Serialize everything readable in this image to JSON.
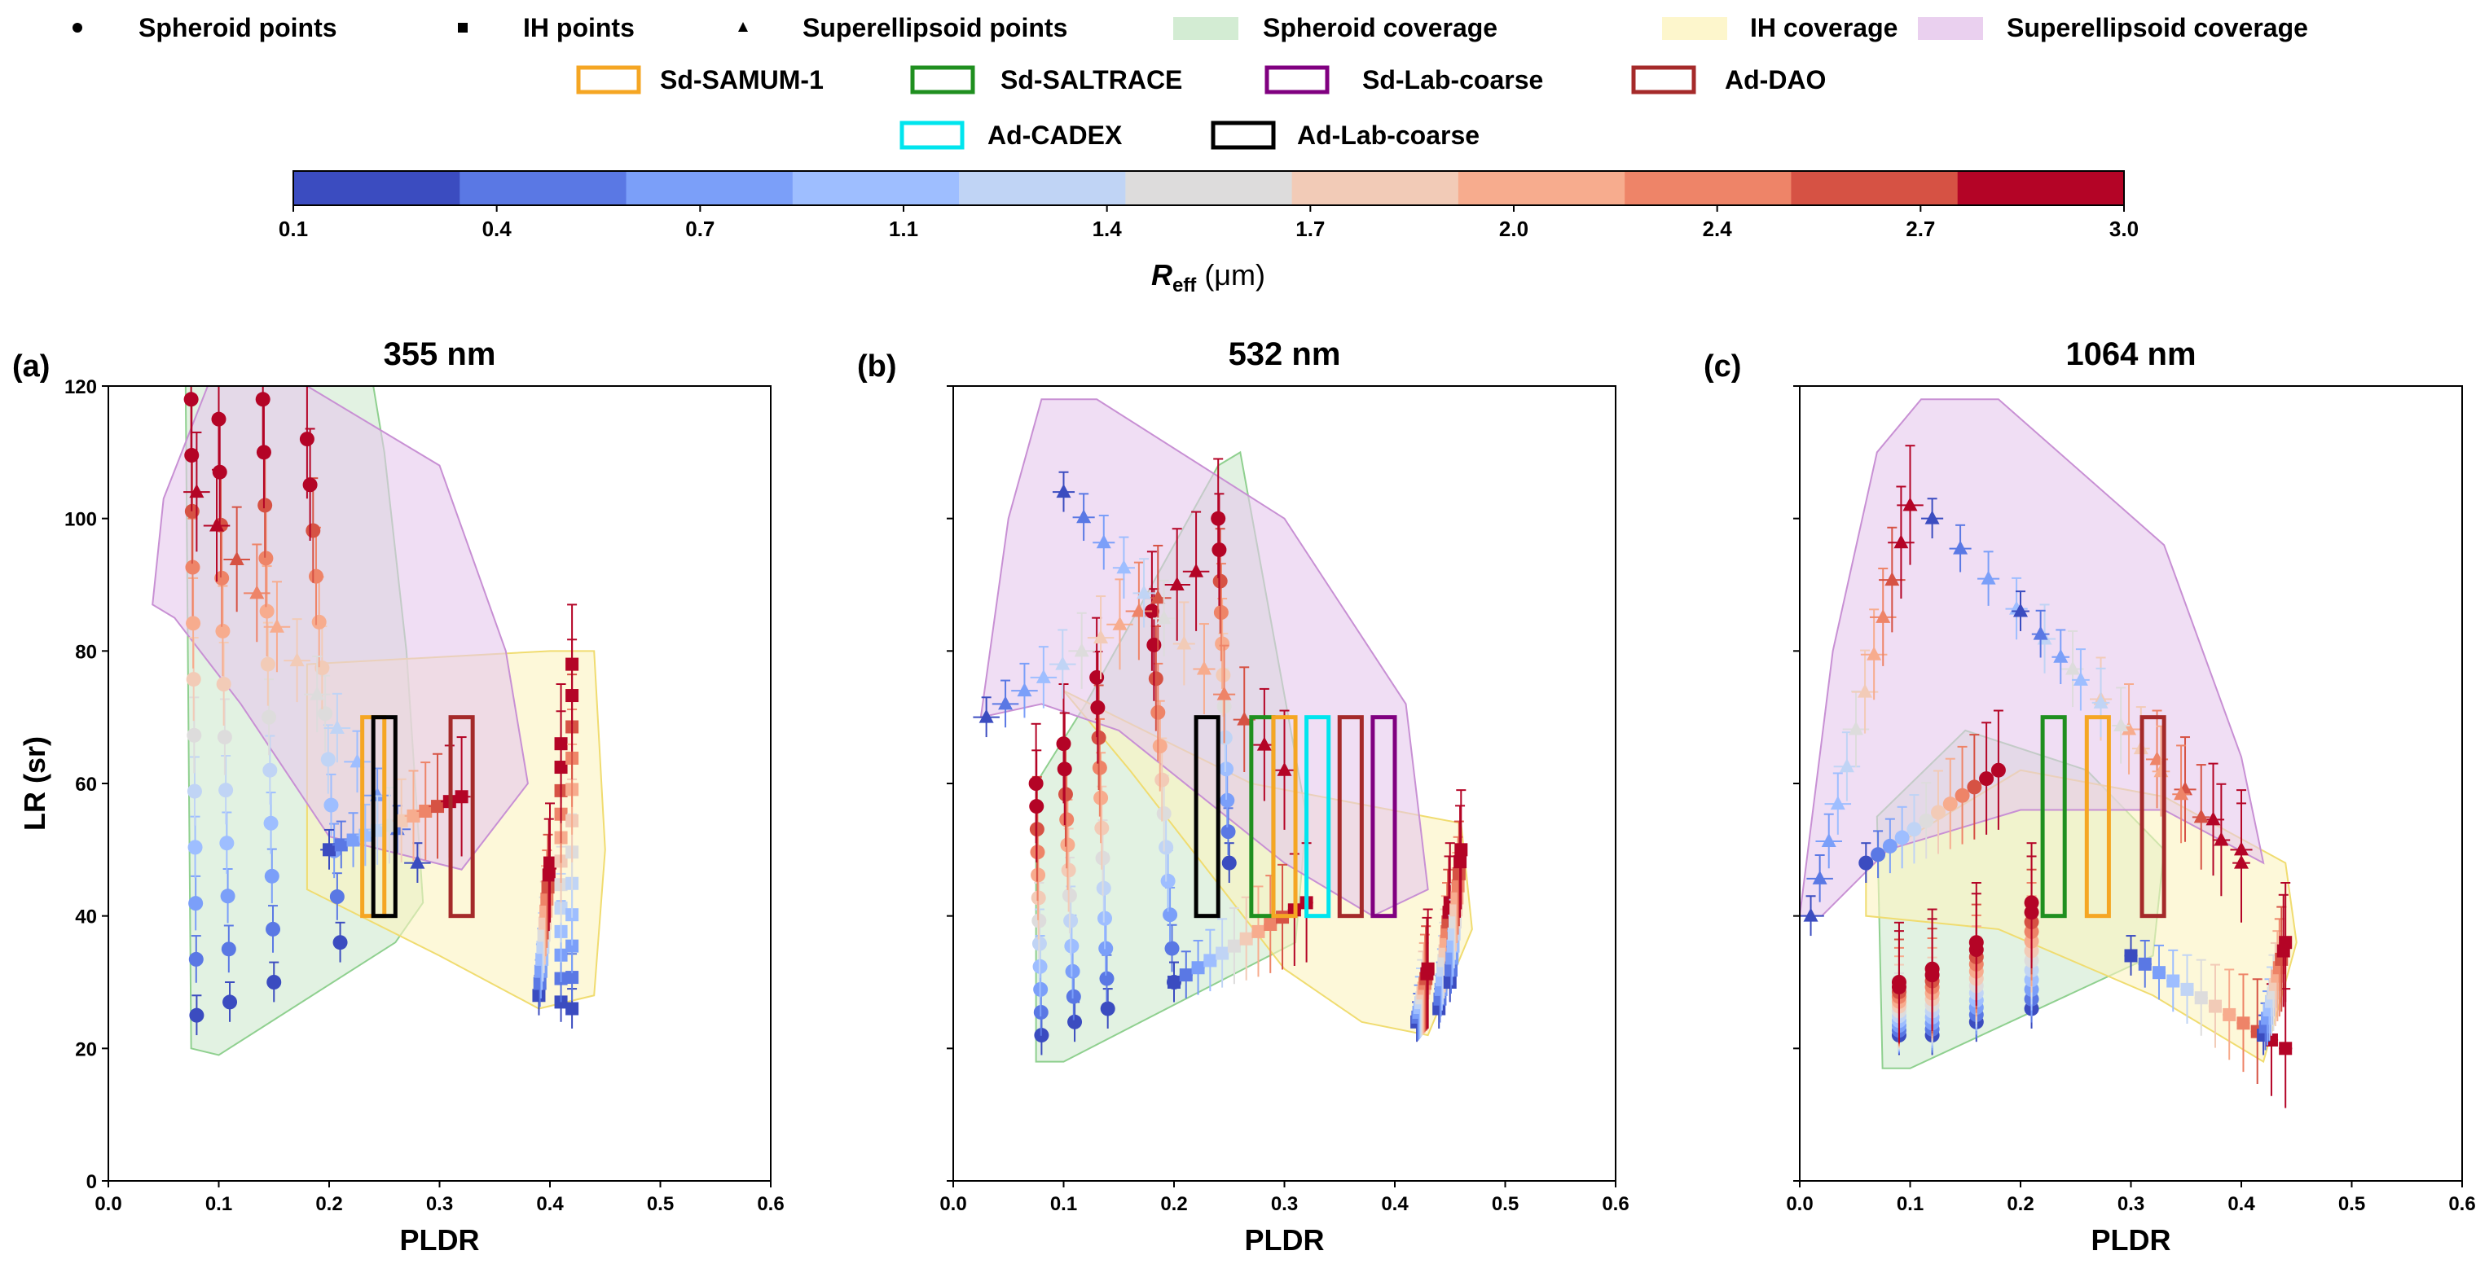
{
  "legend": {
    "markers": [
      {
        "label": "Spheroid points",
        "shape": "circle"
      },
      {
        "label": "IH points",
        "shape": "square"
      },
      {
        "label": "Superellipsoid points",
        "shape": "triangle"
      }
    ],
    "coverage": [
      {
        "label": "Spheroid coverage",
        "color": "#d3ecd3"
      },
      {
        "label": "IH coverage",
        "color": "#fdf6cc"
      },
      {
        "label": "Superellipsoid coverage",
        "color": "#ead0ef"
      }
    ],
    "boxes": [
      {
        "label": "Sd-SAMUM-1",
        "color": "#f5a623"
      },
      {
        "label": "Sd-SALTRACE",
        "color": "#1f8f1f"
      },
      {
        "label": "Sd-Lab-coarse",
        "color": "#800080"
      },
      {
        "label": "Ad-DAO",
        "color": "#a52a2a"
      },
      {
        "label": "Ad-CADEX",
        "color": "#00e5ee"
      },
      {
        "label": "Ad-Lab-coarse",
        "color": "#000000"
      }
    ]
  },
  "colorbar": {
    "label_main": "R",
    "label_sub": "eff",
    "label_unit": " (μm)",
    "ticks": [
      "0.1",
      "0.4",
      "0.7",
      "1.1",
      "1.4",
      "1.7",
      "2.0",
      "2.4",
      "2.7",
      "3.0"
    ],
    "colors": [
      "#3b4cc0",
      "#5a78e4",
      "#7b9ff9",
      "#9ebeff",
      "#c0d4f5",
      "#dddcdc",
      "#f2cbb7",
      "#f7ac8e",
      "#ee8468",
      "#d65244",
      "#b40426"
    ]
  },
  "chart_data": [
    {
      "type": "scatter",
      "panel": "(a)",
      "title": "355 nm",
      "xlabel": "PLDR",
      "ylabel": "LR (sr)",
      "xlim": [
        0.0,
        0.6
      ],
      "ylim": [
        0,
        120
      ],
      "xticks": [
        "0.0",
        "0.1",
        "0.2",
        "0.3",
        "0.4",
        "0.5",
        "0.6"
      ],
      "yticks": [
        "0",
        "20",
        "40",
        "60",
        "80",
        "100",
        "120"
      ],
      "coverage": {
        "spheroid": [
          [
            0.075,
            20
          ],
          [
            0.1,
            19
          ],
          [
            0.26,
            36
          ],
          [
            0.285,
            42
          ],
          [
            0.27,
            80
          ],
          [
            0.25,
            110
          ],
          [
            0.24,
            120
          ],
          [
            0.07,
            120
          ]
        ],
        "ih": [
          [
            0.18,
            78
          ],
          [
            0.4,
            80
          ],
          [
            0.44,
            80
          ],
          [
            0.45,
            50
          ],
          [
            0.44,
            28
          ],
          [
            0.39,
            26
          ],
          [
            0.3,
            34
          ],
          [
            0.18,
            44
          ]
        ],
        "superellipsoid": [
          [
            0.04,
            87
          ],
          [
            0.05,
            103
          ],
          [
            0.09,
            120
          ],
          [
            0.18,
            120
          ],
          [
            0.3,
            108
          ],
          [
            0.36,
            80
          ],
          [
            0.38,
            60
          ],
          [
            0.32,
            47
          ],
          [
            0.2,
            52
          ],
          [
            0.12,
            72
          ],
          [
            0.06,
            85
          ]
        ]
      },
      "boxes": [
        {
          "name": "Sd-SAMUM-1",
          "x": [
            0.23,
            0.25
          ],
          "y": [
            40,
            70
          ]
        },
        {
          "name": "Ad-Lab-coarse",
          "x": [
            0.24,
            0.26
          ],
          "y": [
            40,
            70
          ]
        },
        {
          "name": "Ad-DAO",
          "x": [
            0.31,
            0.33
          ],
          "y": [
            40,
            70
          ]
        }
      ],
      "point_series": [
        {
          "shape": "circle",
          "spread": 0.006,
          "p0": [
            0.08,
            25
          ],
          "p1": [
            0.075,
            118
          ]
        },
        {
          "shape": "circle",
          "spread": 0.006,
          "p0": [
            0.11,
            27
          ],
          "p1": [
            0.1,
            115
          ]
        },
        {
          "shape": "circle",
          "spread": 0.006,
          "p0": [
            0.15,
            30
          ],
          "p1": [
            0.14,
            118
          ]
        },
        {
          "shape": "circle",
          "spread": 0.006,
          "p0": [
            0.21,
            36
          ],
          "p1": [
            0.18,
            112
          ]
        },
        {
          "shape": "triangle",
          "spread": 0.012,
          "p0": [
            0.28,
            48
          ],
          "p1": [
            0.08,
            104
          ]
        },
        {
          "shape": "square",
          "spread": 0.008,
          "p0": [
            0.2,
            50
          ],
          "p1": [
            0.32,
            58
          ]
        },
        {
          "shape": "square",
          "spread": 0.004,
          "p0": [
            0.39,
            28
          ],
          "p1": [
            0.4,
            48
          ]
        },
        {
          "shape": "square",
          "spread": 0.004,
          "p0": [
            0.41,
            27
          ],
          "p1": [
            0.41,
            66
          ]
        },
        {
          "shape": "square",
          "spread": 0.004,
          "p0": [
            0.42,
            26
          ],
          "p1": [
            0.42,
            78
          ]
        }
      ]
    },
    {
      "type": "scatter",
      "panel": "(b)",
      "title": "532 nm",
      "xlabel": "PLDR",
      "ylabel": "",
      "xlim": [
        0.0,
        0.6
      ],
      "ylim": [
        0,
        120
      ],
      "xticks": [
        "0.0",
        "0.1",
        "0.2",
        "0.3",
        "0.4",
        "0.5",
        "0.6"
      ],
      "yticks": [
        "0",
        "20",
        "40",
        "60",
        "80",
        "100",
        "120"
      ],
      "coverage": {
        "spheroid": [
          [
            0.075,
            18
          ],
          [
            0.1,
            18
          ],
          [
            0.31,
            36
          ],
          [
            0.32,
            55
          ],
          [
            0.26,
            110
          ],
          [
            0.24,
            108
          ],
          [
            0.12,
            72
          ],
          [
            0.075,
            60
          ]
        ],
        "ih": [
          [
            0.1,
            74
          ],
          [
            0.27,
            60
          ],
          [
            0.46,
            54
          ],
          [
            0.47,
            38
          ],
          [
            0.43,
            22
          ],
          [
            0.37,
            24
          ],
          [
            0.3,
            32
          ],
          [
            0.16,
            62
          ]
        ],
        "superellipsoid": [
          [
            0.025,
            70
          ],
          [
            0.05,
            100
          ],
          [
            0.08,
            118
          ],
          [
            0.13,
            118
          ],
          [
            0.3,
            100
          ],
          [
            0.41,
            72
          ],
          [
            0.43,
            44
          ],
          [
            0.38,
            40
          ],
          [
            0.3,
            48
          ],
          [
            0.15,
            68
          ],
          [
            0.08,
            72
          ]
        ]
      },
      "boxes": [
        {
          "name": "Ad-Lab-coarse",
          "x": [
            0.22,
            0.24
          ],
          "y": [
            40,
            70
          ]
        },
        {
          "name": "Sd-SALTRACE",
          "x": [
            0.27,
            0.29
          ],
          "y": [
            40,
            70
          ]
        },
        {
          "name": "Sd-SAMUM-1",
          "x": [
            0.29,
            0.31
          ],
          "y": [
            40,
            70
          ]
        },
        {
          "name": "Ad-CADEX",
          "x": [
            0.32,
            0.34
          ],
          "y": [
            40,
            70
          ]
        },
        {
          "name": "Ad-DAO",
          "x": [
            0.35,
            0.37
          ],
          "y": [
            40,
            70
          ]
        },
        {
          "name": "Sd-Lab-coarse",
          "x": [
            0.38,
            0.4
          ],
          "y": [
            40,
            70
          ]
        }
      ],
      "point_series": [
        {
          "shape": "circle",
          "spread": 0.005,
          "p0": [
            0.08,
            22
          ],
          "p1": [
            0.075,
            60
          ]
        },
        {
          "shape": "circle",
          "spread": 0.005,
          "p0": [
            0.11,
            24
          ],
          "p1": [
            0.1,
            66
          ]
        },
        {
          "shape": "circle",
          "spread": 0.005,
          "p0": [
            0.14,
            26
          ],
          "p1": [
            0.13,
            76
          ]
        },
        {
          "shape": "circle",
          "spread": 0.005,
          "p0": [
            0.2,
            30
          ],
          "p1": [
            0.18,
            86
          ]
        },
        {
          "shape": "circle",
          "spread": 0.005,
          "p0": [
            0.25,
            48
          ],
          "p1": [
            0.24,
            100
          ]
        },
        {
          "shape": "triangle",
          "spread": 0.012,
          "p0": [
            0.03,
            70
          ],
          "p1": [
            0.22,
            92
          ]
        },
        {
          "shape": "triangle",
          "spread": 0.01,
          "p0": [
            0.1,
            104
          ],
          "p1": [
            0.3,
            62
          ]
        },
        {
          "shape": "square",
          "spread": 0.006,
          "p0": [
            0.2,
            30
          ],
          "p1": [
            0.32,
            42
          ]
        },
        {
          "shape": "square",
          "spread": 0.004,
          "p0": [
            0.42,
            24
          ],
          "p1": [
            0.43,
            32
          ]
        },
        {
          "shape": "square",
          "spread": 0.004,
          "p0": [
            0.44,
            26
          ],
          "p1": [
            0.45,
            42
          ]
        },
        {
          "shape": "square",
          "spread": 0.004,
          "p0": [
            0.45,
            30
          ],
          "p1": [
            0.46,
            50
          ]
        }
      ]
    },
    {
      "type": "scatter",
      "panel": "(c)",
      "title": "1064 nm",
      "xlabel": "PLDR",
      "ylabel": "",
      "xlim": [
        0.0,
        0.6
      ],
      "ylim": [
        0,
        120
      ],
      "xticks": [
        "0.0",
        "0.1",
        "0.2",
        "0.3",
        "0.4",
        "0.5",
        "0.6"
      ],
      "yticks": [
        "0",
        "20",
        "40",
        "60",
        "80",
        "100",
        "120"
      ],
      "coverage": {
        "spheroid": [
          [
            0.075,
            17
          ],
          [
            0.1,
            17
          ],
          [
            0.32,
            34
          ],
          [
            0.33,
            50
          ],
          [
            0.26,
            62
          ],
          [
            0.15,
            68
          ],
          [
            0.07,
            55
          ]
        ],
        "ih": [
          [
            0.06,
            48
          ],
          [
            0.2,
            62
          ],
          [
            0.33,
            58
          ],
          [
            0.44,
            48
          ],
          [
            0.45,
            36
          ],
          [
            0.42,
            18
          ],
          [
            0.32,
            28
          ],
          [
            0.18,
            38
          ],
          [
            0.06,
            40
          ]
        ],
        "superellipsoid": [
          [
            0.0,
            40
          ],
          [
            0.03,
            80
          ],
          [
            0.07,
            110
          ],
          [
            0.11,
            118
          ],
          [
            0.18,
            118
          ],
          [
            0.33,
            96
          ],
          [
            0.4,
            64
          ],
          [
            0.42,
            48
          ],
          [
            0.33,
            56
          ],
          [
            0.2,
            56
          ],
          [
            0.08,
            50
          ],
          [
            0.02,
            40
          ]
        ]
      },
      "boxes": [
        {
          "name": "Sd-SALTRACE",
          "x": [
            0.22,
            0.24
          ],
          "y": [
            40,
            70
          ]
        },
        {
          "name": "Sd-SAMUM-1",
          "x": [
            0.26,
            0.28
          ],
          "y": [
            40,
            70
          ]
        },
        {
          "name": "Ad-DAO",
          "x": [
            0.31,
            0.33
          ],
          "y": [
            40,
            70
          ]
        }
      ],
      "point_series": [
        {
          "shape": "circle",
          "spread": 0.004,
          "p0": [
            0.09,
            22
          ],
          "p1": [
            0.09,
            30
          ]
        },
        {
          "shape": "circle",
          "spread": 0.004,
          "p0": [
            0.12,
            22
          ],
          "p1": [
            0.12,
            32
          ]
        },
        {
          "shape": "circle",
          "spread": 0.004,
          "p0": [
            0.16,
            24
          ],
          "p1": [
            0.16,
            36
          ]
        },
        {
          "shape": "circle",
          "spread": 0.004,
          "p0": [
            0.21,
            26
          ],
          "p1": [
            0.21,
            42
          ]
        },
        {
          "shape": "circle",
          "spread": 0.006,
          "p0": [
            0.06,
            48
          ],
          "p1": [
            0.18,
            62
          ]
        },
        {
          "shape": "triangle",
          "spread": 0.012,
          "p0": [
            0.01,
            40
          ],
          "p1": [
            0.1,
            102
          ]
        },
        {
          "shape": "triangle",
          "spread": 0.01,
          "p0": [
            0.12,
            100
          ],
          "p1": [
            0.4,
            50
          ]
        },
        {
          "shape": "triangle",
          "spread": 0.008,
          "p0": [
            0.2,
            86
          ],
          "p1": [
            0.4,
            48
          ]
        },
        {
          "shape": "square",
          "spread": 0.006,
          "p0": [
            0.3,
            34
          ],
          "p1": [
            0.44,
            20
          ]
        },
        {
          "shape": "square",
          "spread": 0.004,
          "p0": [
            0.42,
            22
          ],
          "p1": [
            0.44,
            36
          ]
        }
      ]
    }
  ]
}
